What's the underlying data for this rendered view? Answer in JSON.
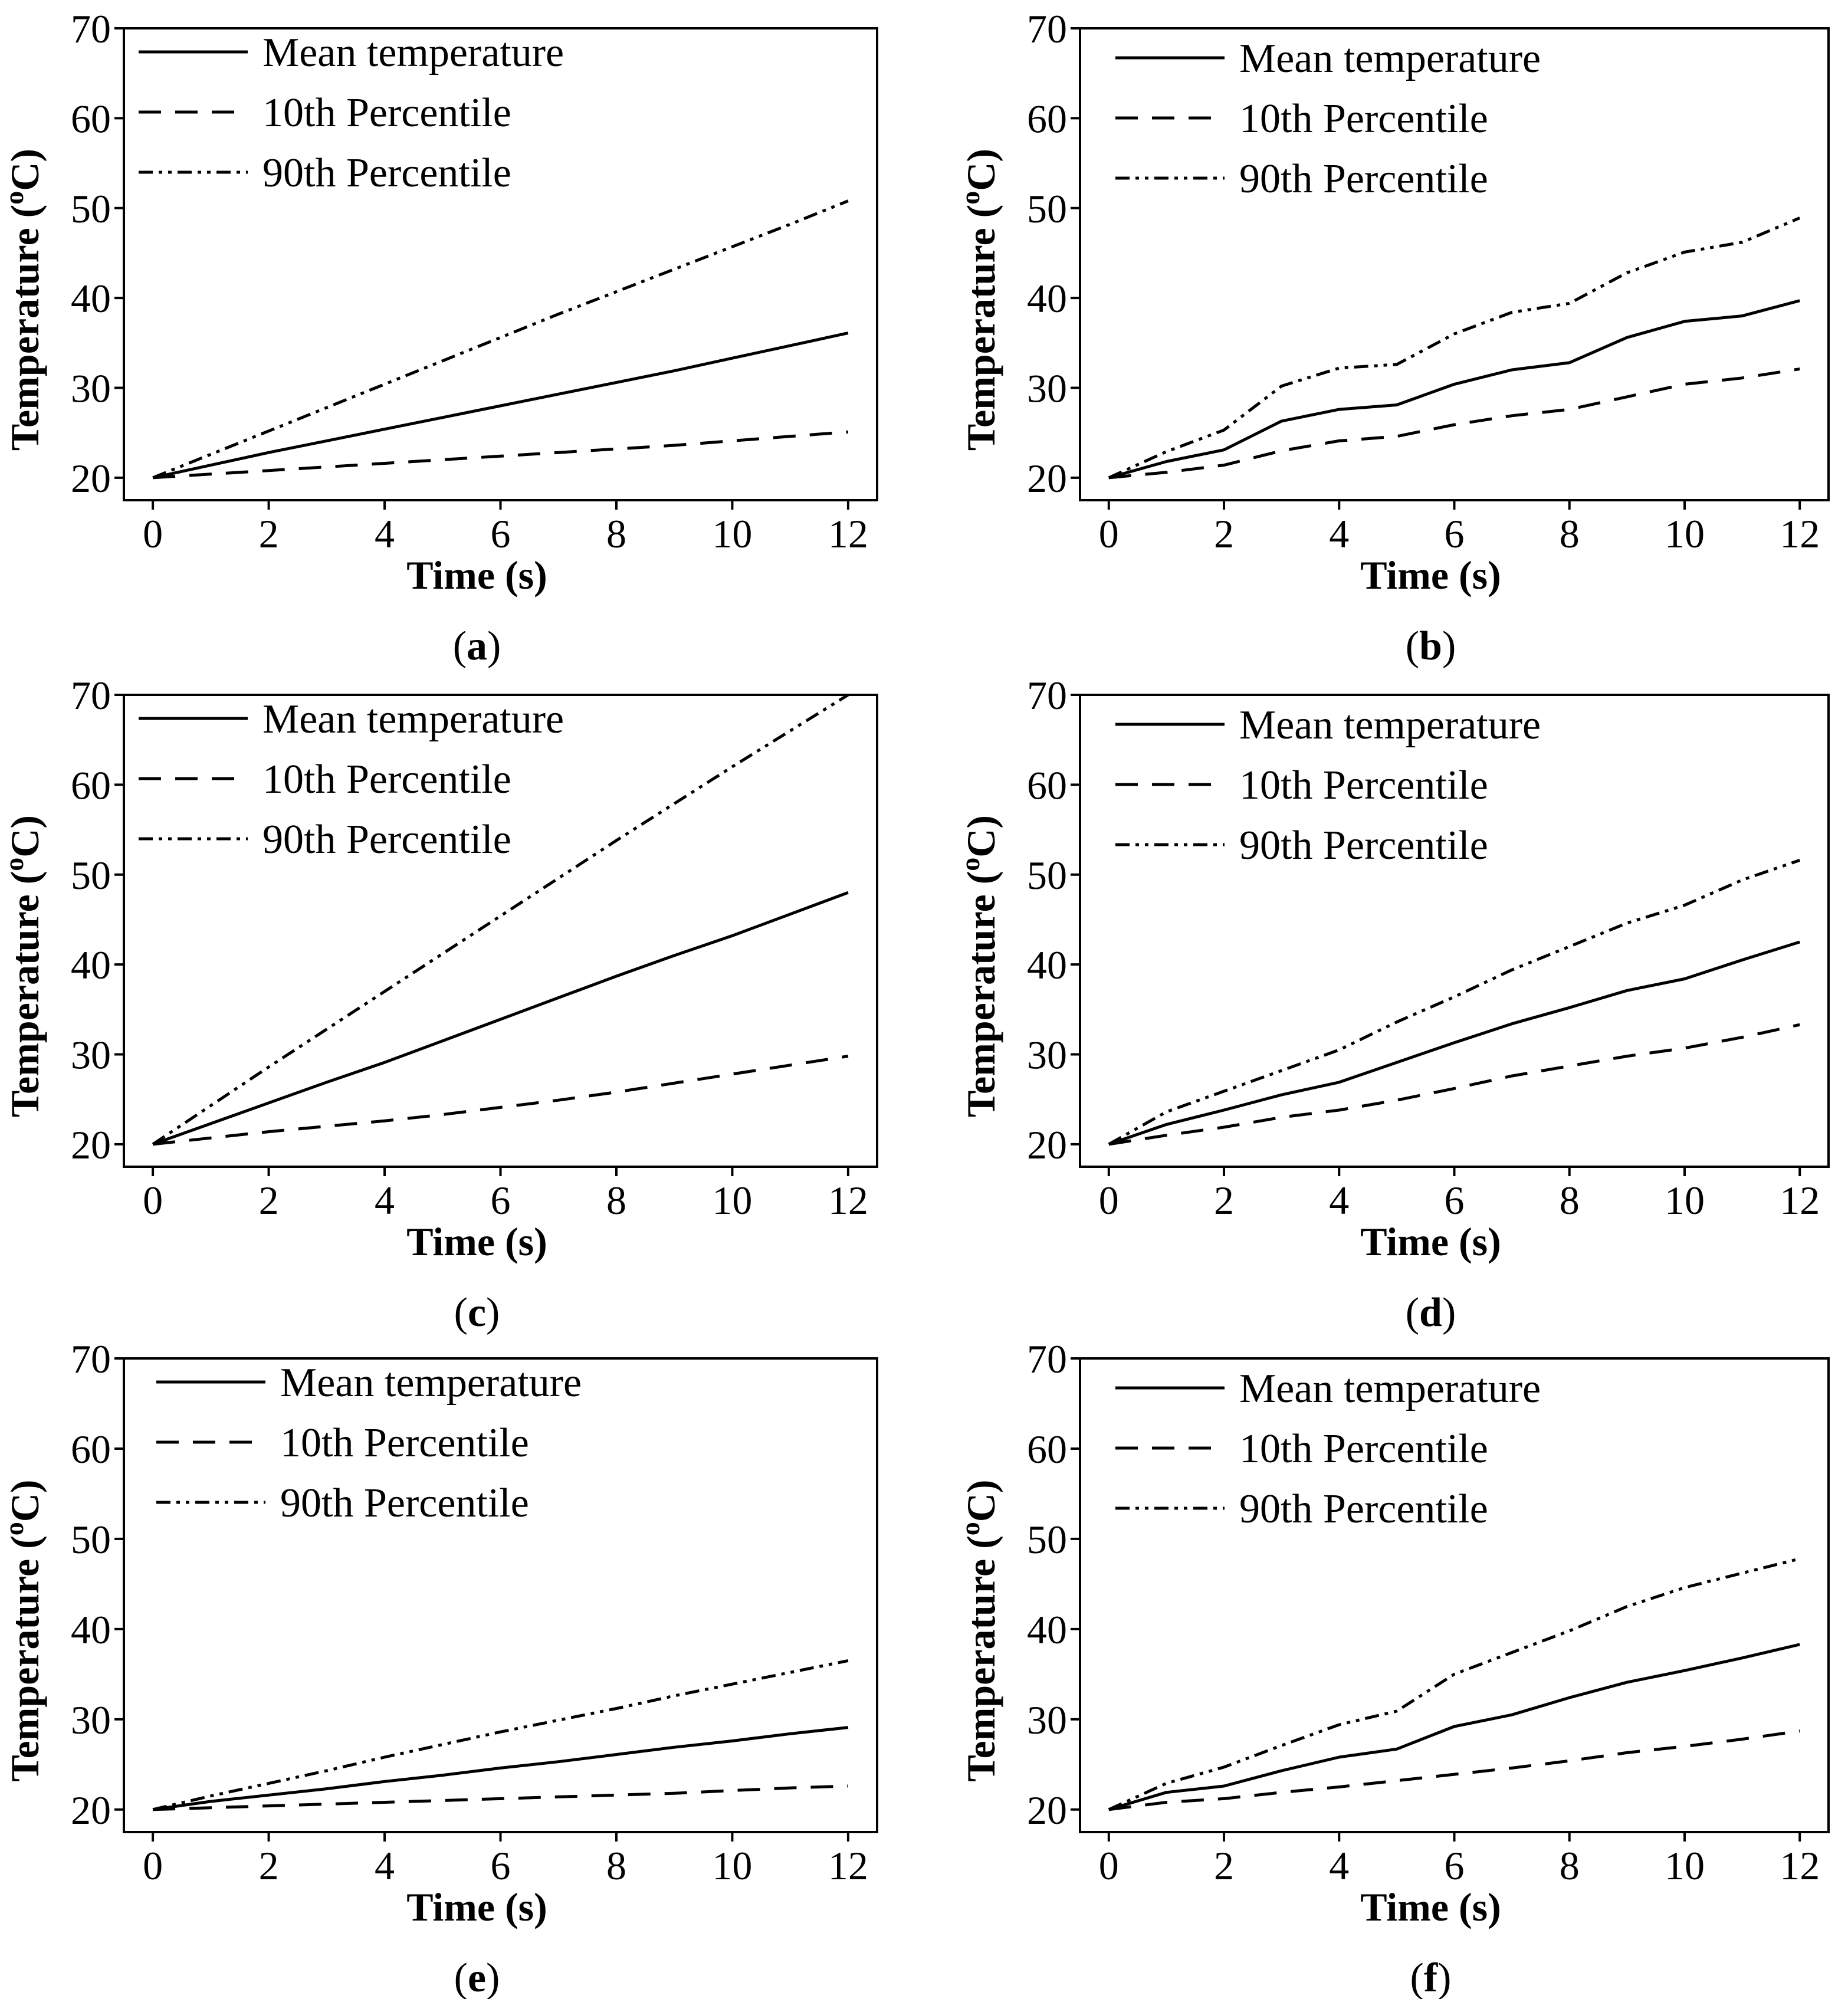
{
  "figure": {
    "colors": {
      "ink": "#000000",
      "background": "#ffffff"
    }
  },
  "chart_data": [
    {
      "panel": "a",
      "caption_letter": "a",
      "type": "line",
      "xlabel": "Time (s)",
      "ylabel": "Temperature (°C)",
      "ylabel_base": "Temperature (",
      "ylabel_sup": "o",
      "ylabel_end": "C)",
      "xlim": [
        -0.5,
        12.5
      ],
      "ylim": [
        17.5,
        70
      ],
      "xticks": [
        "0",
        "2",
        "4",
        "6",
        "8",
        "10",
        "12"
      ],
      "yticks": [
        "20",
        "30",
        "40",
        "50",
        "60",
        "70"
      ],
      "legend": "top-left",
      "x": [
        0,
        1,
        2,
        3,
        4,
        5,
        6,
        7,
        8,
        9,
        10,
        11,
        12
      ],
      "series": [
        {
          "name": "Mean temperature",
          "style": "solid",
          "values": [
            20,
            21.4,
            22.8,
            24.1,
            25.4,
            26.7,
            28.0,
            29.3,
            30.6,
            31.9,
            33.3,
            34.7,
            36.1
          ]
        },
        {
          "name": "10th Percentile",
          "style": "dash",
          "values": [
            20,
            20.4,
            20.8,
            21.2,
            21.6,
            22.0,
            22.4,
            22.8,
            23.2,
            23.6,
            24.1,
            24.6,
            25.1
          ]
        },
        {
          "name": "90th Percentile",
          "style": "dashdotdot",
          "values": [
            20,
            22.6,
            25.2,
            27.8,
            30.4,
            33.0,
            35.6,
            38.2,
            40.7,
            43.2,
            45.7,
            48.2,
            50.8
          ]
        }
      ]
    },
    {
      "panel": "b",
      "caption_letter": "b",
      "type": "line",
      "xlabel": "Time (s)",
      "ylabel": "Temperature (°C)",
      "ylabel_base": "Temperature (",
      "ylabel_sup": "o",
      "ylabel_end": "C)",
      "xlim": [
        -0.5,
        12.5
      ],
      "ylim": [
        17.5,
        70
      ],
      "xticks": [
        "0",
        "2",
        "4",
        "6",
        "8",
        "10",
        "12"
      ],
      "yticks": [
        "20",
        "30",
        "40",
        "50",
        "60",
        "70"
      ],
      "legend": "top-left",
      "x": [
        0,
        1,
        2,
        3,
        4,
        5,
        6,
        7,
        8,
        9,
        10,
        11,
        12
      ],
      "series": [
        {
          "name": "Mean temperature",
          "style": "solid",
          "values": [
            20,
            21.8,
            23.1,
            26.3,
            27.6,
            28.1,
            30.4,
            32.0,
            32.8,
            35.6,
            37.4,
            38.0,
            39.7
          ]
        },
        {
          "name": "10th Percentile",
          "style": "dash",
          "values": [
            20,
            20.6,
            21.4,
            23.0,
            24.1,
            24.6,
            25.9,
            26.9,
            27.6,
            29.0,
            30.4,
            31.1,
            32.1
          ]
        },
        {
          "name": "90th Percentile",
          "style": "dashdotdot",
          "values": [
            20,
            22.9,
            25.3,
            30.2,
            32.2,
            32.6,
            36.0,
            38.4,
            39.4,
            42.8,
            45.1,
            46.2,
            48.9
          ]
        }
      ]
    },
    {
      "panel": "c",
      "caption_letter": "c",
      "type": "line",
      "xlabel": "Time (s)",
      "ylabel": "Temperature (°C)",
      "ylabel_base": "Temperature (",
      "ylabel_sup": "o",
      "ylabel_end": "C)",
      "xlim": [
        -0.5,
        12.5
      ],
      "ylim": [
        17.5,
        70
      ],
      "xticks": [
        "0",
        "2",
        "4",
        "6",
        "8",
        "10",
        "12"
      ],
      "yticks": [
        "20",
        "30",
        "40",
        "50",
        "60",
        "70"
      ],
      "legend": "top-left",
      "x": [
        0,
        1,
        2,
        3,
        4,
        5,
        6,
        7,
        8,
        9,
        10,
        11,
        12
      ],
      "series": [
        {
          "name": "Mean temperature",
          "style": "solid",
          "values": [
            20,
            22.3,
            24.6,
            26.9,
            29.1,
            31.5,
            33.9,
            36.3,
            38.7,
            41.0,
            43.2,
            45.6,
            48.0
          ]
        },
        {
          "name": "10th Percentile",
          "style": "dash",
          "values": [
            20,
            20.7,
            21.4,
            22.0,
            22.6,
            23.3,
            24.1,
            24.9,
            25.8,
            26.8,
            27.8,
            28.8,
            29.8
          ]
        },
        {
          "name": "90th Percentile",
          "style": "dashdotdot",
          "values": [
            20,
            24.3,
            28.6,
            32.8,
            37.0,
            41.2,
            45.4,
            49.6,
            53.8,
            57.9,
            62.0,
            66.0,
            70.0
          ]
        }
      ]
    },
    {
      "panel": "d",
      "caption_letter": "d",
      "type": "line",
      "xlabel": "Time (s)",
      "ylabel": "Temperature (°C)",
      "ylabel_base": "Temperature (",
      "ylabel_sup": "o",
      "ylabel_end": "C)",
      "xlim": [
        -0.5,
        12.5
      ],
      "ylim": [
        17.5,
        70
      ],
      "xticks": [
        "0",
        "2",
        "4",
        "6",
        "8",
        "10",
        "12"
      ],
      "yticks": [
        "20",
        "30",
        "40",
        "50",
        "60",
        "70"
      ],
      "legend": "top-left",
      "x": [
        0,
        1,
        2,
        3,
        4,
        5,
        6,
        7,
        8,
        9,
        10,
        11,
        12
      ],
      "series": [
        {
          "name": "Mean temperature",
          "style": "solid",
          "values": [
            20,
            22.2,
            23.8,
            25.5,
            26.9,
            29.1,
            31.3,
            33.4,
            35.2,
            37.1,
            38.4,
            40.5,
            42.5
          ]
        },
        {
          "name": "10th Percentile",
          "style": "dash",
          "values": [
            20,
            21.0,
            21.9,
            23.0,
            23.8,
            24.9,
            26.2,
            27.6,
            28.7,
            29.8,
            30.7,
            31.9,
            33.3
          ]
        },
        {
          "name": "90th Percentile",
          "style": "dashdotdot",
          "values": [
            20,
            23.6,
            25.9,
            28.2,
            30.5,
            33.6,
            36.4,
            39.4,
            42.0,
            44.6,
            46.6,
            49.4,
            51.6
          ]
        }
      ]
    },
    {
      "panel": "e",
      "caption_letter": "e",
      "type": "line",
      "xlabel": "Time (s)",
      "ylabel": "Temperature (°C)",
      "ylabel_base": "Temperature (",
      "ylabel_sup": "o",
      "ylabel_end": "C)",
      "xlim": [
        -0.5,
        12.5
      ],
      "ylim": [
        17.5,
        70
      ],
      "xticks": [
        "0",
        "2",
        "4",
        "6",
        "8",
        "10",
        "12"
      ],
      "yticks": [
        "20",
        "30",
        "40",
        "50",
        "60",
        "70"
      ],
      "legend": "top-left",
      "x": [
        0,
        1,
        2,
        3,
        4,
        5,
        6,
        7,
        8,
        9,
        10,
        11,
        12
      ],
      "series": [
        {
          "name": "Mean temperature",
          "style": "solid",
          "values": [
            20,
            20.9,
            21.6,
            22.3,
            23.1,
            23.8,
            24.6,
            25.3,
            26.1,
            26.9,
            27.6,
            28.4,
            29.1
          ]
        },
        {
          "name": "10th Percentile",
          "style": "dash",
          "values": [
            20,
            20.2,
            20.4,
            20.6,
            20.8,
            21.0,
            21.2,
            21.4,
            21.6,
            21.8,
            22.1,
            22.4,
            22.6
          ]
        },
        {
          "name": "90th Percentile",
          "style": "dashdotdot",
          "values": [
            20,
            21.5,
            22.9,
            24.3,
            25.8,
            27.2,
            28.6,
            29.9,
            31.2,
            32.6,
            33.9,
            35.2,
            36.5
          ]
        }
      ]
    },
    {
      "panel": "f",
      "caption_letter": "f",
      "type": "line",
      "xlabel": "Time (s)",
      "ylabel": "Temperature (°C)",
      "ylabel_base": "Temperature (",
      "ylabel_sup": "o",
      "ylabel_end": "C)",
      "xlim": [
        -0.5,
        12.5
      ],
      "ylim": [
        17.5,
        70
      ],
      "xticks": [
        "0",
        "2",
        "4",
        "6",
        "8",
        "10",
        "12"
      ],
      "yticks": [
        "20",
        "30",
        "40",
        "50",
        "60",
        "70"
      ],
      "legend": "top-left",
      "x": [
        0,
        1,
        2,
        3,
        4,
        5,
        6,
        7,
        8,
        9,
        10,
        11,
        12
      ],
      "series": [
        {
          "name": "Mean temperature",
          "style": "solid",
          "values": [
            20,
            21.9,
            22.6,
            24.3,
            25.8,
            26.7,
            29.2,
            30.5,
            32.4,
            34.1,
            35.4,
            36.8,
            38.3
          ]
        },
        {
          "name": "10th Percentile",
          "style": "dash",
          "values": [
            20,
            20.8,
            21.2,
            21.9,
            22.5,
            23.2,
            23.9,
            24.6,
            25.4,
            26.3,
            27.0,
            27.8,
            28.7
          ]
        },
        {
          "name": "90th Percentile",
          "style": "dashdotdot",
          "values": [
            20,
            22.9,
            24.7,
            27.1,
            29.4,
            30.9,
            35.0,
            37.4,
            39.8,
            42.5,
            44.6,
            46.2,
            47.8
          ]
        }
      ]
    }
  ]
}
